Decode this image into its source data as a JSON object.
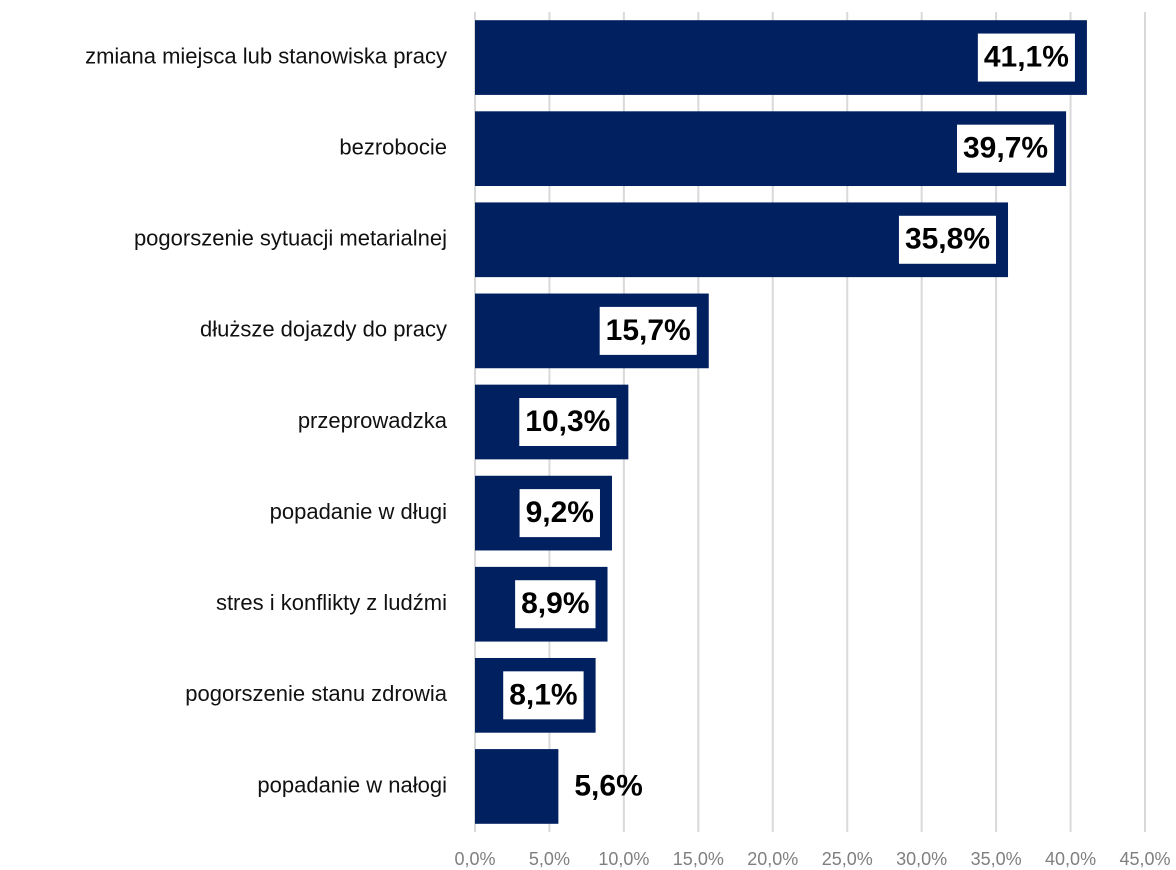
{
  "chart_data": {
    "type": "barh",
    "categories": [
      "zmiana miejsca lub stanowiska pracy",
      "bezrobocie",
      "pogorszenie sytuacji metarialnej",
      "dłuższe dojazdy do pracy",
      "przeprowadzka",
      "popadanie w długi",
      "stres i konflikty z ludźmi",
      "pogorszenie stanu zdrowia",
      "popadanie w nałogi"
    ],
    "values": [
      41.1,
      39.7,
      35.8,
      15.7,
      10.3,
      9.2,
      8.9,
      8.1,
      5.6
    ],
    "value_labels": [
      "41,1%",
      "39,7%",
      "35,8%",
      "15,7%",
      "10,3%",
      "9,2%",
      "8,9%",
      "8,1%",
      "5,6%"
    ],
    "color": "#002060",
    "xlim": [
      0,
      45
    ],
    "xticks": [
      {
        "value": 0,
        "label": "0,0%"
      },
      {
        "value": 5,
        "label": "5,0%"
      },
      {
        "value": 10,
        "label": "10,0%"
      },
      {
        "value": 15,
        "label": "15,0%"
      },
      {
        "value": 20,
        "label": "20,0%"
      },
      {
        "value": 25,
        "label": "25,0%"
      },
      {
        "value": 30,
        "label": "30,0%"
      },
      {
        "value": 35,
        "label": "35,0%"
      },
      {
        "value": 40,
        "label": "40,0%"
      },
      {
        "value": 45,
        "label": "45,0%"
      }
    ],
    "grid": true
  }
}
